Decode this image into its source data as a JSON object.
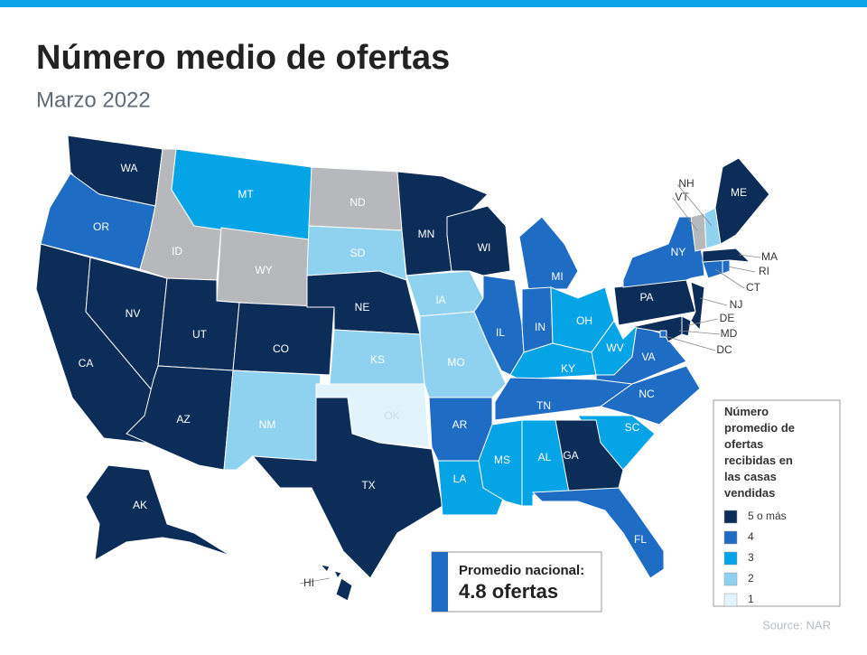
{
  "header": {
    "title": "Número medio de ofertas",
    "subtitle": "Marzo 2022"
  },
  "map": {
    "no_data_color": "#b6b8bb",
    "states": [
      {
        "abbr": "WA",
        "value": 5
      },
      {
        "abbr": "OR",
        "value": 4
      },
      {
        "abbr": "CA",
        "value": 5
      },
      {
        "abbr": "NV",
        "value": 5
      },
      {
        "abbr": "ID",
        "value": null
      },
      {
        "abbr": "MT",
        "value": 3
      },
      {
        "abbr": "WY",
        "value": null
      },
      {
        "abbr": "UT",
        "value": 5
      },
      {
        "abbr": "CO",
        "value": 5
      },
      {
        "abbr": "AZ",
        "value": 5
      },
      {
        "abbr": "NM",
        "value": 2
      },
      {
        "abbr": "ND",
        "value": null
      },
      {
        "abbr": "SD",
        "value": 2
      },
      {
        "abbr": "NE",
        "value": 5
      },
      {
        "abbr": "KS",
        "value": 2
      },
      {
        "abbr": "OK",
        "value": 1
      },
      {
        "abbr": "TX",
        "value": 5
      },
      {
        "abbr": "MN",
        "value": 5
      },
      {
        "abbr": "IA",
        "value": 2
      },
      {
        "abbr": "MO",
        "value": 2
      },
      {
        "abbr": "AR",
        "value": 4
      },
      {
        "abbr": "LA",
        "value": 3
      },
      {
        "abbr": "WI",
        "value": 5
      },
      {
        "abbr": "IL",
        "value": 4
      },
      {
        "abbr": "MI",
        "value": 4
      },
      {
        "abbr": "IN",
        "value": 4
      },
      {
        "abbr": "OH",
        "value": 3
      },
      {
        "abbr": "KY",
        "value": 3
      },
      {
        "abbr": "WV",
        "value": 3
      },
      {
        "abbr": "VA",
        "value": 4
      },
      {
        "abbr": "TN",
        "value": 4
      },
      {
        "abbr": "NC",
        "value": 4
      },
      {
        "abbr": "SC",
        "value": 3
      },
      {
        "abbr": "GA",
        "value": 5
      },
      {
        "abbr": "AL",
        "value": 3
      },
      {
        "abbr": "MS",
        "value": 3
      },
      {
        "abbr": "FL",
        "value": 4
      },
      {
        "abbr": "PA",
        "value": 5
      },
      {
        "abbr": "NY",
        "value": 4
      },
      {
        "abbr": "NJ",
        "value": 5
      },
      {
        "abbr": "DE",
        "value": 5
      },
      {
        "abbr": "MD",
        "value": 5
      },
      {
        "abbr": "DC",
        "value": 4
      },
      {
        "abbr": "CT",
        "value": 4
      },
      {
        "abbr": "RI",
        "value": 4
      },
      {
        "abbr": "MA",
        "value": 5
      },
      {
        "abbr": "VT",
        "value": null
      },
      {
        "abbr": "NH",
        "value": 2
      },
      {
        "abbr": "ME",
        "value": 5
      },
      {
        "abbr": "AK",
        "value": 5
      },
      {
        "abbr": "HI",
        "value": 5
      }
    ]
  },
  "legend": {
    "title": "Número promedio de ofertas recibidas en las casas vendidas",
    "items": [
      {
        "value": 5,
        "label": "5 o más",
        "color": "#0b2d58"
      },
      {
        "value": 4,
        "label": "4",
        "color": "#1e6cc3"
      },
      {
        "value": 3,
        "label": "3",
        "color": "#05a4e6"
      },
      {
        "value": 2,
        "label": "2",
        "color": "#8ed2f0"
      },
      {
        "value": 1,
        "label": "1",
        "color": "#e2f4fb"
      }
    ]
  },
  "callout": {
    "label": "Promedio nacional:",
    "value": "4.8 ofertas"
  },
  "source": "Source: NAR"
}
